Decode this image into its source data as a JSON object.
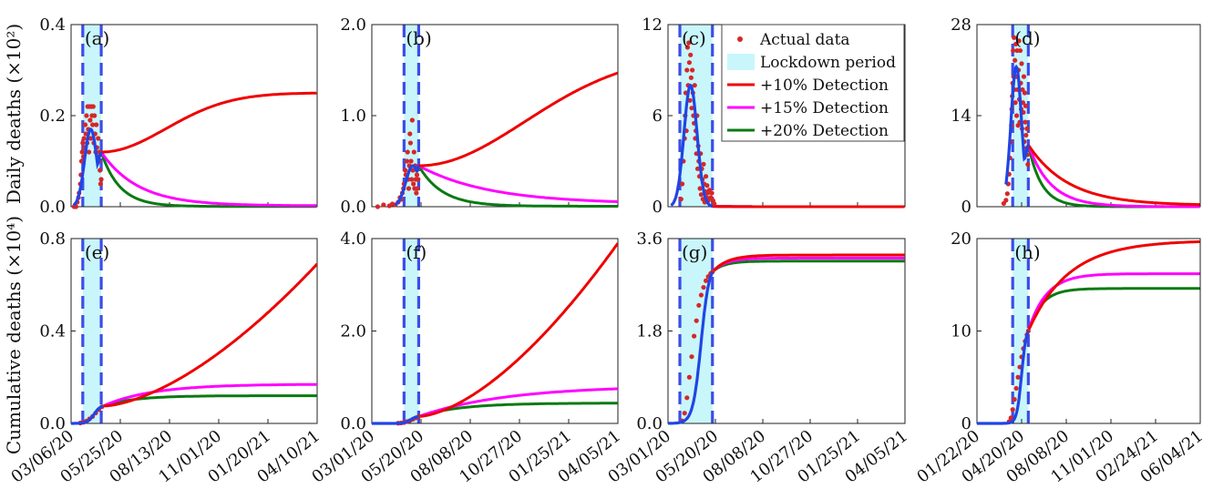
{
  "figure": {
    "ylabel_top": "Daily deaths (×10²)",
    "ylabel_bottom": "Cumulative deaths (×10⁴)"
  },
  "colors": {
    "actual": "#d62728",
    "fit": "#1f45e6",
    "lockdown_fill": "#c9f6fa",
    "lockdown_edge": "#3b4de8",
    "det10": "#ee0000",
    "det15": "#ff00ff",
    "det20": "#0a7a12",
    "axis": "#222222"
  },
  "legend": {
    "placement": "inside panel (c), top-right",
    "items": [
      {
        "key": "actual",
        "label": "Actual data"
      },
      {
        "key": "lockdown",
        "label": "Lockdown period"
      },
      {
        "key": "det10",
        "label": "+10% Detection"
      },
      {
        "key": "det15",
        "label": "+15% Detection"
      },
      {
        "key": "det20",
        "label": "+20% Detection"
      }
    ]
  },
  "chart_data": [
    {
      "id": "a",
      "panel_label": "(a)",
      "type": "line",
      "ylim": [
        0,
        0.4
      ],
      "yticks": [
        "0.0",
        "0.2",
        "0.4"
      ],
      "yvals": [
        0,
        0.2,
        0.4
      ],
      "xticks": [
        "03/06/20",
        "05/25/20",
        "08/13/20",
        "11/01/20",
        "01/20/21",
        "04/10/21"
      ],
      "xlim_days": [
        0,
        400
      ],
      "lockdown_days": [
        19,
        49
      ],
      "data_end": 52,
      "peak": {
        "t": 32,
        "h": 0.17,
        "w": 10
      },
      "mid": 0.12,
      "scenarios": {
        "det10": 0.25,
        "det15": 0.002,
        "det20": 0.0005
      },
      "taus": {
        "det10": 220,
        "det15": 60,
        "det20": 30
      },
      "actual_data": [
        [
          5,
          0.0
        ],
        [
          8,
          0.0
        ],
        [
          10,
          0.01
        ],
        [
          12,
          0.02
        ],
        [
          13,
          0.03
        ],
        [
          15,
          0.05
        ],
        [
          16,
          0.07
        ],
        [
          17,
          0.1
        ],
        [
          18,
          0.12
        ],
        [
          19,
          0.14
        ],
        [
          20,
          0.11
        ],
        [
          21,
          0.15
        ],
        [
          22,
          0.13
        ],
        [
          23,
          0.18
        ],
        [
          24,
          0.16
        ],
        [
          25,
          0.2
        ],
        [
          26,
          0.14
        ],
        [
          27,
          0.22
        ],
        [
          28,
          0.17
        ],
        [
          29,
          0.12
        ],
        [
          30,
          0.22
        ],
        [
          31,
          0.19
        ],
        [
          32,
          0.15
        ],
        [
          33,
          0.22
        ],
        [
          34,
          0.2
        ],
        [
          35,
          0.18
        ],
        [
          36,
          0.22
        ],
        [
          37,
          0.14
        ],
        [
          38,
          0.2
        ],
        [
          39,
          0.16
        ],
        [
          40,
          0.12
        ],
        [
          41,
          0.18
        ],
        [
          42,
          0.13
        ],
        [
          43,
          0.11
        ],
        [
          44,
          0.15
        ],
        [
          45,
          0.1
        ],
        [
          46,
          0.12
        ],
        [
          47,
          0.08
        ],
        [
          48,
          0.05
        ],
        [
          49,
          0.06
        ]
      ]
    },
    {
      "id": "b",
      "panel_label": "(b)",
      "type": "line",
      "ylim": [
        0,
        2.0
      ],
      "yticks": [
        "0.0",
        "1.0",
        "2.0"
      ],
      "yvals": [
        0,
        1.0,
        2.0
      ],
      "xticks": [
        "03/01/20",
        "05/20/20",
        "08/08/20",
        "10/27/20",
        "01/25/21",
        "04/05/21"
      ],
      "xlim_days": [
        0,
        420
      ],
      "lockdown_days": [
        55,
        80
      ],
      "data_end": 80,
      "peak": {
        "t": 70,
        "h": 0.45,
        "w": 12
      },
      "mid": 0.45,
      "scenarios": {
        "det10": 1.68,
        "det15": 0.03,
        "det20": 0.005
      },
      "taus": {
        "det10": 380,
        "det15": 120,
        "det20": 40
      },
      "actual_data": [
        [
          10,
          0.0
        ],
        [
          20,
          0.02
        ],
        [
          30,
          0.01
        ],
        [
          35,
          0.03
        ],
        [
          40,
          0.02
        ],
        [
          45,
          0.05
        ],
        [
          48,
          0.1
        ],
        [
          50,
          0.08
        ],
        [
          52,
          0.15
        ],
        [
          54,
          0.2
        ],
        [
          55,
          0.25
        ],
        [
          57,
          0.4
        ],
        [
          58,
          0.35
        ],
        [
          60,
          0.5
        ],
        [
          61,
          0.6
        ],
        [
          62,
          0.3
        ],
        [
          63,
          0.2
        ],
        [
          64,
          0.45
        ],
        [
          65,
          0.8
        ],
        [
          66,
          0.7
        ],
        [
          67,
          0.5
        ],
        [
          68,
          0.3
        ],
        [
          69,
          0.95
        ],
        [
          70,
          0.4
        ],
        [
          71,
          0.25
        ],
        [
          72,
          0.6
        ],
        [
          73,
          0.2
        ],
        [
          74,
          0.45
        ],
        [
          75,
          0.3
        ],
        [
          76,
          0.15
        ],
        [
          77,
          0.35
        ],
        [
          78,
          0.2
        ],
        [
          79,
          0.3
        ]
      ]
    },
    {
      "id": "c",
      "panel_label": "(c)",
      "type": "line",
      "ylim": [
        0,
        12
      ],
      "yticks": [
        "0",
        "6",
        "12"
      ],
      "yvals": [
        0,
        6,
        12
      ],
      "xticks": [
        "03/01/20",
        "05/20/20",
        "08/08/20",
        "10/27/20",
        "01/25/21",
        "04/05/21"
      ],
      "xlim_days": [
        0,
        400
      ],
      "lockdown_days": [
        20,
        75
      ],
      "data_end": 95,
      "peak": {
        "t": 38,
        "h": 8.0,
        "w": 11
      },
      "mid": 0.0,
      "scenarios": {
        "det10": 0.0,
        "det15": 0.0,
        "det20": 0.0
      },
      "taus": {
        "det10": 30,
        "det15": 30,
        "det20": 30
      },
      "actual_data": [
        [
          22,
          0.5
        ],
        [
          24,
          1.5
        ],
        [
          26,
          3.0
        ],
        [
          28,
          4.5
        ],
        [
          29,
          6.0
        ],
        [
          30,
          7.5
        ],
        [
          31,
          5.0
        ],
        [
          32,
          9.0
        ],
        [
          33,
          10.5
        ],
        [
          34,
          8.0
        ],
        [
          35,
          10.8
        ],
        [
          36,
          9.5
        ],
        [
          37,
          7.0
        ],
        [
          38,
          10.0
        ],
        [
          39,
          8.5
        ],
        [
          40,
          6.5
        ],
        [
          41,
          9.0
        ],
        [
          42,
          7.5
        ],
        [
          43,
          6.0
        ],
        [
          44,
          5.5
        ],
        [
          45,
          8.0
        ],
        [
          46,
          4.5
        ],
        [
          47,
          5.0
        ],
        [
          48,
          3.5
        ],
        [
          49,
          6.0
        ],
        [
          50,
          2.5
        ],
        [
          51,
          4.0
        ],
        [
          52,
          3.0
        ],
        [
          53,
          2.0
        ],
        [
          54,
          1.2
        ],
        [
          55,
          3.5
        ],
        [
          56,
          0.8
        ],
        [
          57,
          2.5
        ],
        [
          58,
          1.8
        ],
        [
          59,
          0.5
        ],
        [
          60,
          2.8
        ],
        [
          61,
          1.5
        ],
        [
          62,
          0.3
        ],
        [
          63,
          1.0
        ],
        [
          64,
          2.0
        ],
        [
          65,
          0.6
        ],
        [
          66,
          1.4
        ],
        [
          67,
          0.9
        ],
        [
          68,
          0.4
        ],
        [
          70,
          1.1
        ],
        [
          72,
          0.6
        ],
        [
          74,
          0.9
        ],
        [
          76,
          0.4
        ],
        [
          78,
          0.2
        ]
      ]
    },
    {
      "id": "d",
      "panel_label": "(d)",
      "type": "line",
      "ylim": [
        0,
        28
      ],
      "yticks": [
        "0",
        "14",
        "28"
      ],
      "yvals": [
        0,
        14,
        28
      ],
      "xticks": [
        "01/22/20",
        "04/20/20",
        "08/08/20",
        "11/01/20",
        "02/24/21",
        "06/04/21"
      ],
      "xlim_days": [
        0,
        500
      ],
      "lockdown_days": [
        80,
        115
      ],
      "data_end": 125,
      "peak": {
        "t": 88,
        "h": 21.5,
        "w": 12
      },
      "mid": 9.5,
      "scenarios": {
        "det10": 0.2,
        "det15": 0.0,
        "det20": 0.0
      },
      "taus": {
        "det10": 90,
        "det15": 50,
        "det20": 30
      },
      "actual_data": [
        [
          60,
          0.5
        ],
        [
          65,
          1.0
        ],
        [
          68,
          2.0
        ],
        [
          70,
          3.5
        ],
        [
          72,
          5.0
        ],
        [
          74,
          7.5
        ],
        [
          76,
          10.0
        ],
        [
          77,
          12.5
        ],
        [
          78,
          15.0
        ],
        [
          79,
          17.0
        ],
        [
          80,
          19.0
        ],
        [
          81,
          24.0
        ],
        [
          82,
          20.0
        ],
        [
          83,
          26.0
        ],
        [
          84,
          18.0
        ],
        [
          85,
          22.5
        ],
        [
          86,
          16.0
        ],
        [
          87,
          25.0
        ],
        [
          88,
          20.0
        ],
        [
          89,
          14.0
        ],
        [
          90,
          24.0
        ],
        [
          91,
          18.0
        ],
        [
          92,
          12.5
        ],
        [
          93,
          21.0
        ],
        [
          94,
          25.5
        ],
        [
          95,
          16.5
        ],
        [
          96,
          13.0
        ],
        [
          97,
          24.0
        ],
        [
          98,
          19.0
        ],
        [
          99,
          15.0
        ],
        [
          100,
          22.0
        ],
        [
          101,
          12.0
        ],
        [
          102,
          18.0
        ],
        [
          103,
          16.0
        ],
        [
          104,
          14.5
        ],
        [
          105,
          20.0
        ],
        [
          106,
          10.0
        ],
        [
          107,
          17.5
        ],
        [
          108,
          13.0
        ],
        [
          109,
          15.5
        ],
        [
          110,
          11.0
        ],
        [
          111,
          9.0
        ],
        [
          112,
          12.0
        ],
        [
          113,
          8.0
        ],
        [
          114,
          6.5
        ]
      ]
    },
    {
      "id": "e",
      "panel_label": "(e)",
      "type": "line",
      "ylim": [
        0,
        0.8
      ],
      "yticks": [
        "0.0",
        "0.4",
        "0.8"
      ],
      "yvals": [
        0,
        0.4,
        0.8
      ],
      "xticks": [
        "03/06/20",
        "05/25/20",
        "08/13/20",
        "11/01/20",
        "01/20/21",
        "04/10/21"
      ],
      "xlim_days": [
        0,
        400
      ],
      "lockdown_days": [
        19,
        49
      ],
      "data_end": 52,
      "cum": {
        "t0": 10,
        "t_end": 52,
        "y_end": 0.075,
        "shape": "logistic"
      },
      "scenarios": {
        "det10": 0.69,
        "det15": 0.17,
        "det20": 0.12
      },
      "taus": {
        "det10": 0,
        "det15": 80,
        "det20": 50
      },
      "final_shape": {
        "det10": "convex"
      },
      "actual_data": [
        [
          15,
          0.002
        ],
        [
          20,
          0.005
        ],
        [
          25,
          0.01
        ],
        [
          30,
          0.02
        ],
        [
          35,
          0.03
        ],
        [
          40,
          0.045
        ],
        [
          45,
          0.06
        ],
        [
          50,
          0.072
        ]
      ]
    },
    {
      "id": "f",
      "panel_label": "(f)",
      "type": "line",
      "ylim": [
        0,
        4.0
      ],
      "yticks": [
        "0.0",
        "2.0",
        "4.0"
      ],
      "yvals": [
        0,
        2.0,
        4.0
      ],
      "xticks": [
        "03/01/20",
        "05/20/20",
        "08/08/20",
        "10/27/20",
        "01/25/21",
        "04/05/21"
      ],
      "xlim_days": [
        0,
        420
      ],
      "lockdown_days": [
        55,
        80
      ],
      "data_end": 80,
      "cum": {
        "t0": 40,
        "t_end": 80,
        "y_end": 0.15,
        "shape": "logistic"
      },
      "scenarios": {
        "det10": 3.9,
        "det15": 0.82,
        "det20": 0.44
      },
      "taus": {
        "det10": 0,
        "det15": 150,
        "det20": 70
      },
      "final_shape": {
        "det10": "convex"
      },
      "actual_data": [
        [
          45,
          0.005
        ],
        [
          50,
          0.01
        ],
        [
          55,
          0.02
        ],
        [
          60,
          0.04
        ],
        [
          65,
          0.06
        ],
        [
          70,
          0.09
        ],
        [
          75,
          0.12
        ],
        [
          80,
          0.15
        ]
      ]
    },
    {
      "id": "g",
      "panel_label": "(g)",
      "type": "line",
      "ylim": [
        0,
        3.6
      ],
      "yticks": [
        "0.0",
        "1.8",
        "3.6"
      ],
      "yvals": [
        0,
        1.8,
        3.6
      ],
      "xticks": [
        "03/01/20",
        "05/20/20",
        "08/08/20",
        "10/27/20",
        "01/25/21",
        "04/05/21"
      ],
      "xlim_days": [
        0,
        400
      ],
      "lockdown_days": [
        20,
        75
      ],
      "data_end": 75,
      "cum": {
        "t0": 20,
        "t_end": 75,
        "y_end": 2.95,
        "shape": "logistic"
      },
      "scenarios": {
        "det10": 3.28,
        "det15": 3.22,
        "det20": 3.16
      },
      "taus": {
        "det10": 25,
        "det15": 22,
        "det20": 20
      },
      "actual_data": [
        [
          24,
          0.05
        ],
        [
          28,
          0.2
        ],
        [
          32,
          0.5
        ],
        [
          36,
          0.9
        ],
        [
          40,
          1.3
        ],
        [
          44,
          1.7
        ],
        [
          48,
          2.0
        ],
        [
          52,
          2.3
        ],
        [
          56,
          2.5
        ],
        [
          60,
          2.65
        ],
        [
          64,
          2.78
        ],
        [
          68,
          2.86
        ],
        [
          72,
          2.92
        ],
        [
          75,
          2.95
        ]
      ]
    },
    {
      "id": "h",
      "panel_label": "(h)",
      "type": "line",
      "ylim": [
        0,
        20
      ],
      "yticks": [
        "0",
        "10",
        "20"
      ],
      "yvals": [
        0,
        10,
        20
      ],
      "xticks": [
        "01/22/20",
        "04/20/20",
        "08/08/20",
        "11/01/20",
        "02/24/21",
        "06/04/21"
      ],
      "xlim_days": [
        0,
        500
      ],
      "lockdown_days": [
        80,
        115
      ],
      "data_end": 115,
      "cum": {
        "t0": 72,
        "t_end": 115,
        "y_end": 10.0,
        "shape": "logistic"
      },
      "scenarios": {
        "det10": 19.8,
        "det15": 16.2,
        "det20": 14.6
      },
      "taus": {
        "det10": 90,
        "det15": 40,
        "det20": 30
      },
      "actual_data": [
        [
          72,
          0.2
        ],
        [
          76,
          0.6
        ],
        [
          80,
          1.5
        ],
        [
          84,
          2.6
        ],
        [
          88,
          3.8
        ],
        [
          92,
          5.0
        ],
        [
          96,
          6.1
        ],
        [
          100,
          7.2
        ],
        [
          104,
          8.1
        ],
        [
          108,
          8.9
        ],
        [
          112,
          9.6
        ],
        [
          115,
          10.0
        ]
      ]
    }
  ]
}
